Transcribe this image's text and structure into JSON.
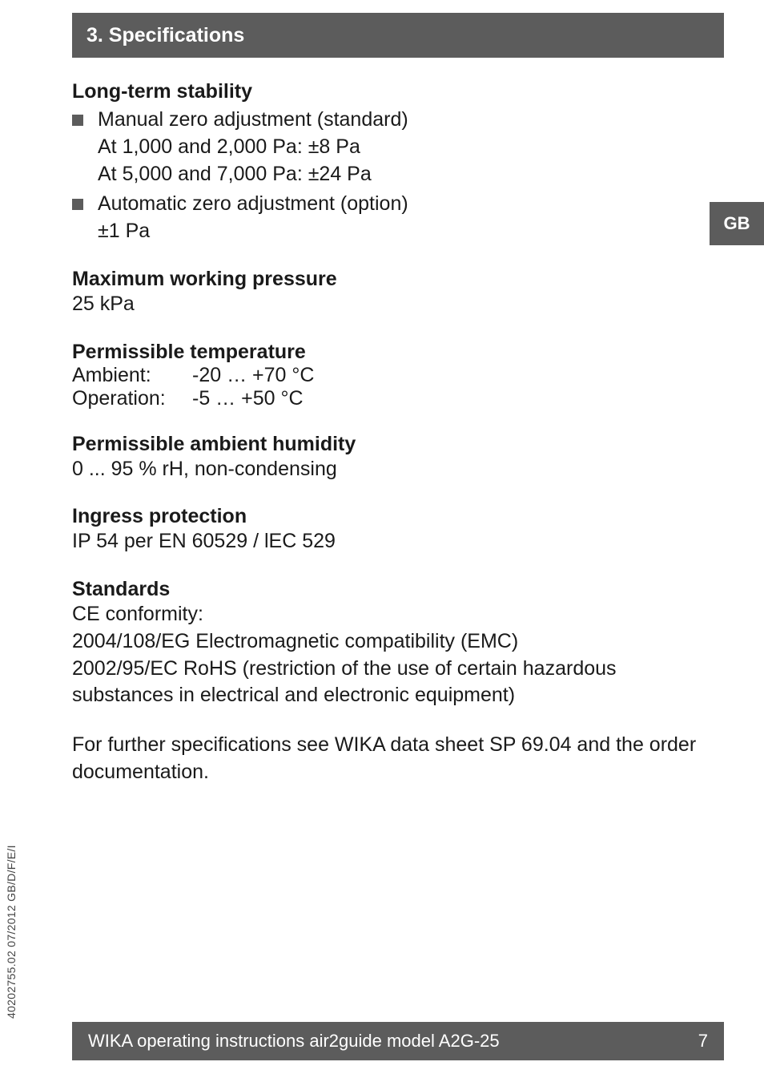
{
  "section_bar": {
    "title": "3. Specifications"
  },
  "side_tab": {
    "label": "GB"
  },
  "specs": {
    "long_term_stability": {
      "heading": "Long-term stability",
      "manual_zero": {
        "label": "Manual zero adjustment (standard)",
        "line1": "At 1,000 and 2,000 Pa:   ±8 Pa",
        "line2": "At 5,000 and 7,000 Pa: ±24 Pa"
      },
      "auto_zero": {
        "label": "Automatic zero adjustment (option)",
        "line1": "±1 Pa"
      }
    },
    "max_working_pressure": {
      "heading": "Maximum working pressure",
      "value": "25 kPa"
    },
    "permissible_temperature": {
      "heading": "Permissible temperature",
      "ambient_label": "Ambient:",
      "ambient_value": "-20 … +70 °C",
      "operation_label": "Operation:",
      "operation_value": "-5 … +50 °C"
    },
    "permissible_humidity": {
      "heading": "Permissible ambient humidity",
      "value": "0 ... 95 % rH, non-condensing"
    },
    "ingress_protection": {
      "heading": "Ingress protection",
      "value": "IP 54 per EN 60529 / lEC 529"
    },
    "standards": {
      "heading": "Standards",
      "line1": "CE conformity:",
      "line2": "2004/108/EG Electromagnetic compatibility (EMC)",
      "line3": "2002/95/EC RoHS (restriction of the use of certain hazardous substances in electrical and electronic equipment)"
    },
    "further_note": "For further specifications see WIKA data sheet SP 69.04 and the order documentation."
  },
  "footer": {
    "left": "WIKA operating instructions air2guide model A2G-25",
    "page_number": "7"
  },
  "doc_id": "40202755.02 07/2012 GB/D/F/E/I"
}
